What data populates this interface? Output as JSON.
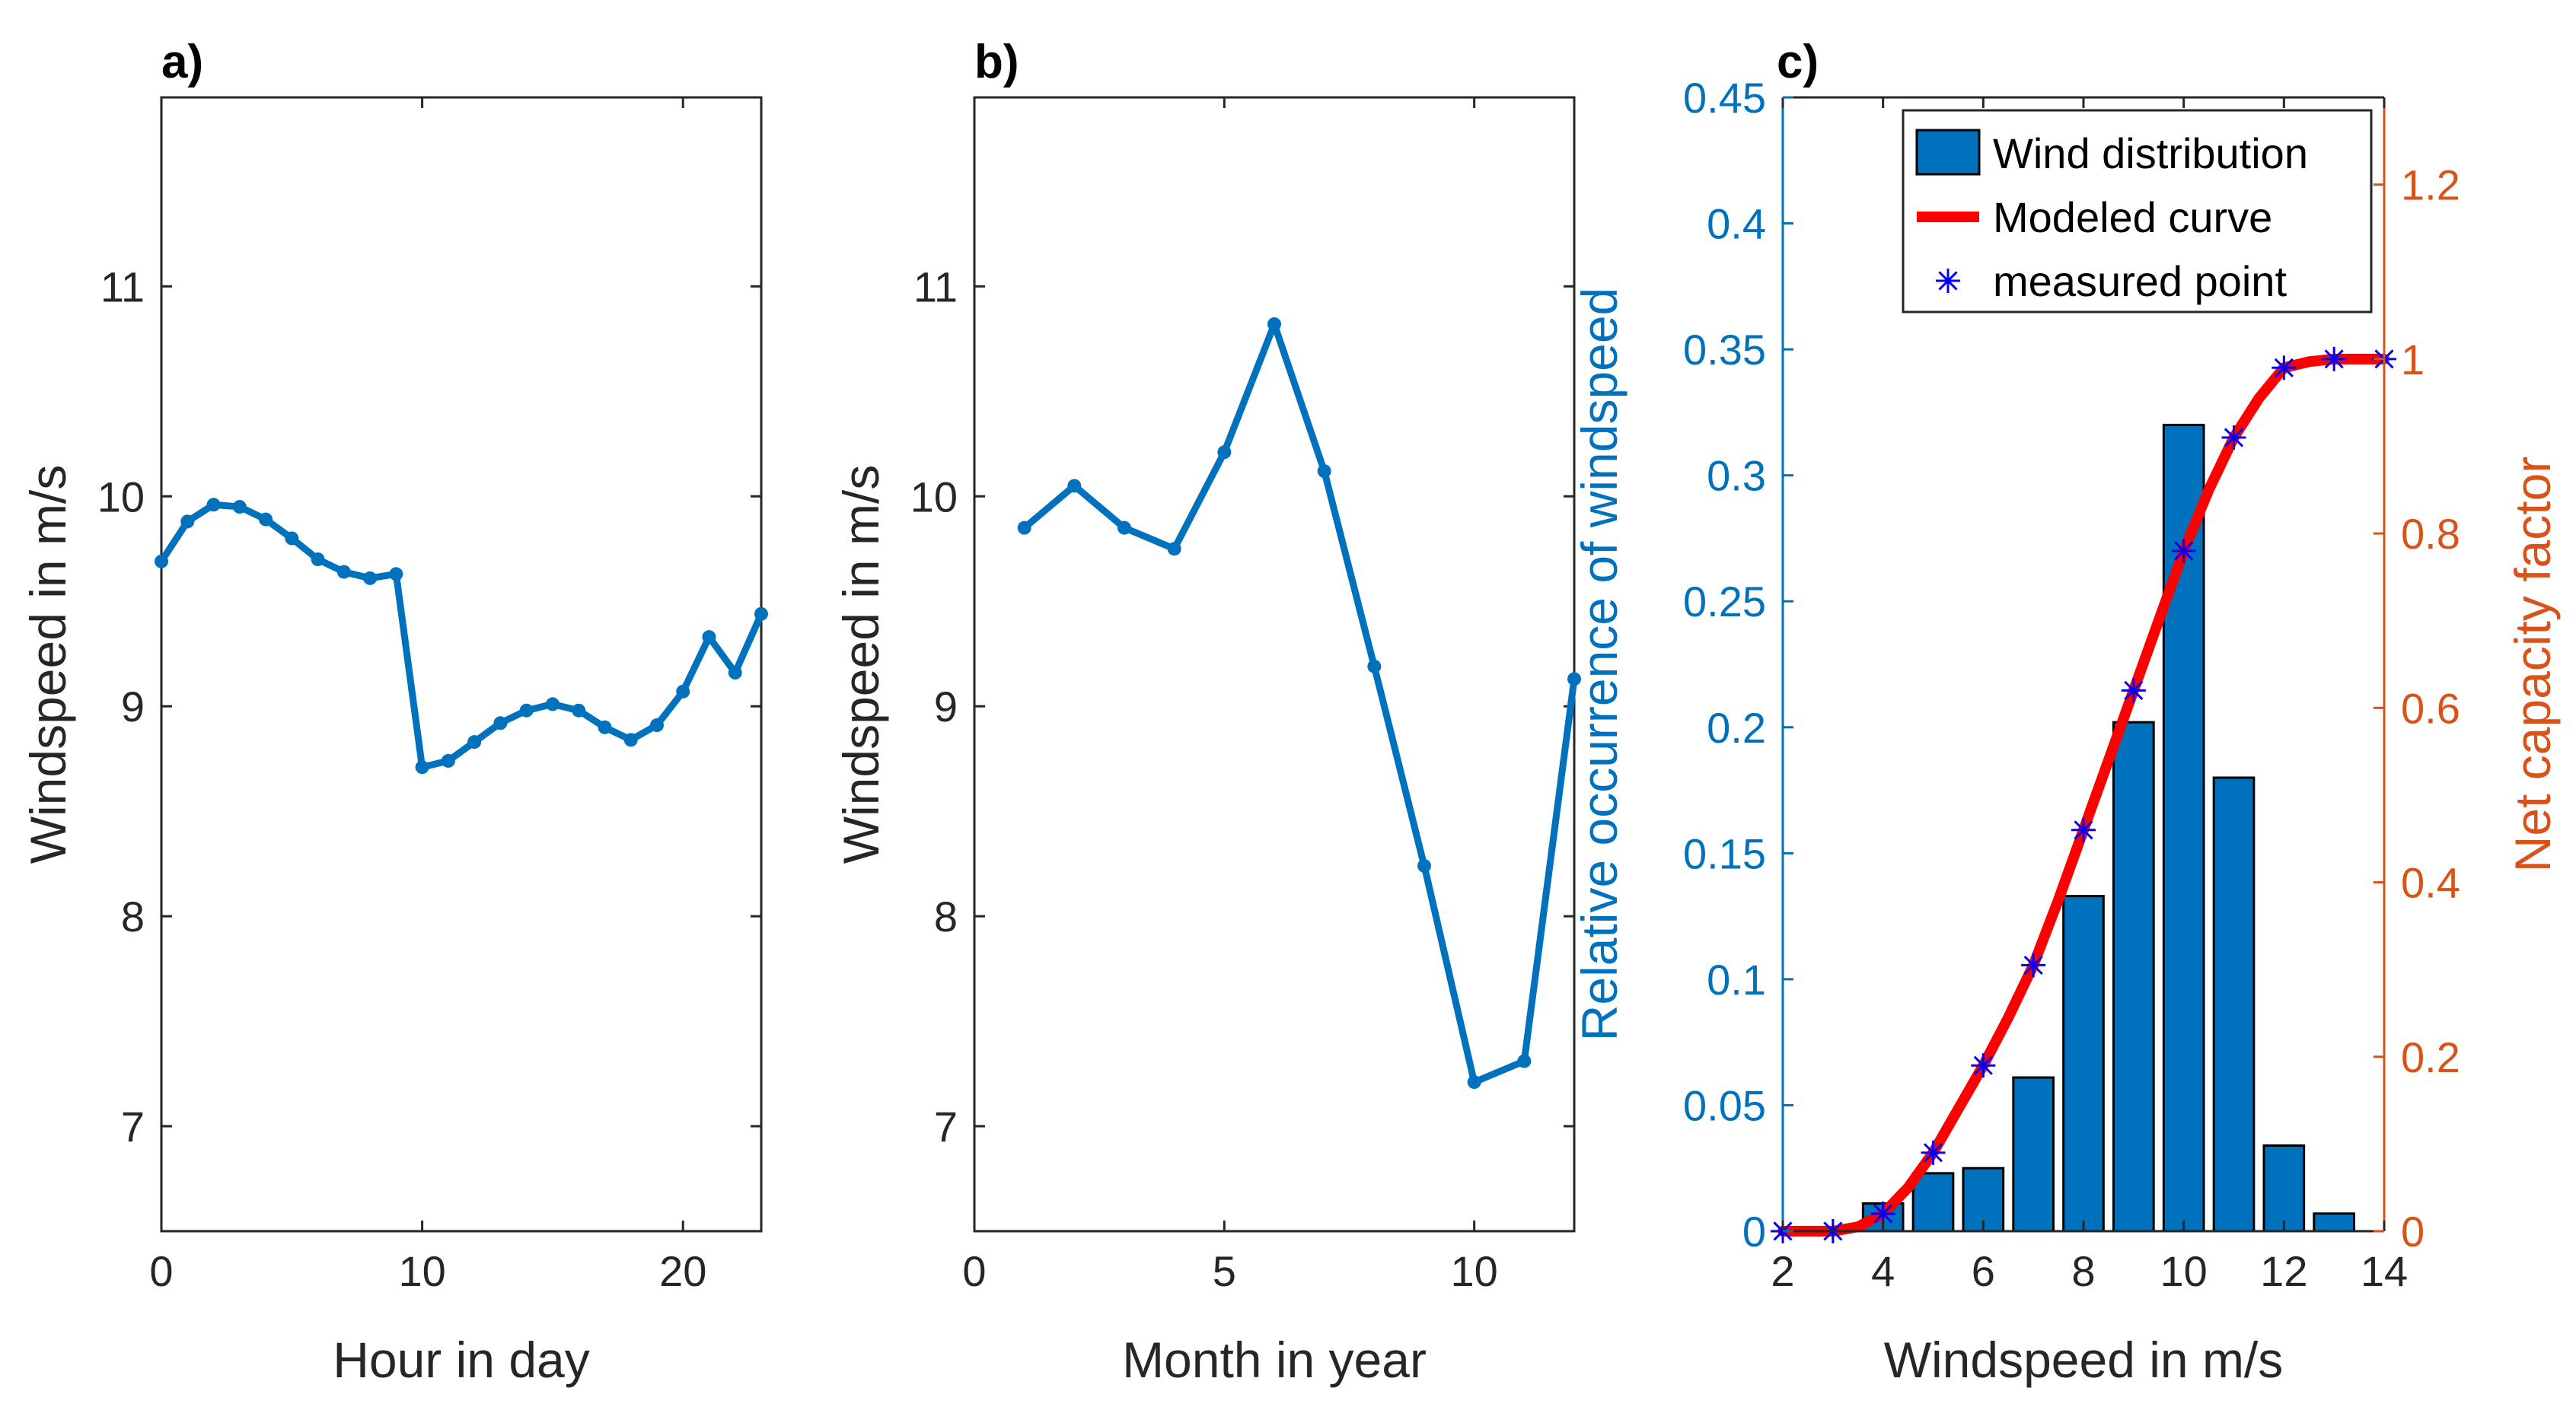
{
  "chart_data": [
    {
      "type": "line",
      "title": "a)",
      "xlabel": "Hour in day",
      "ylabel": "Windspeed in m/s",
      "xlim": [
        0,
        23
      ],
      "ylim": [
        6.5,
        11.9
      ],
      "xticks": [
        0,
        10,
        20
      ],
      "yticks": [
        7,
        8,
        9,
        10,
        11
      ],
      "color": "#0072BD",
      "x": [
        0,
        1,
        2,
        3,
        4,
        5,
        6,
        7,
        8,
        9,
        10,
        11,
        12,
        13,
        14,
        15,
        16,
        17,
        18,
        19,
        20,
        21,
        22,
        23
      ],
      "y": [
        9.69,
        9.88,
        9.96,
        9.95,
        9.89,
        9.8,
        9.7,
        9.64,
        9.61,
        9.63,
        8.71,
        8.74,
        8.83,
        8.92,
        8.98,
        9.01,
        8.98,
        8.9,
        8.84,
        8.91,
        9.07,
        9.33,
        9.16,
        9.44
      ]
    },
    {
      "type": "line",
      "title": "b)",
      "xlabel": "Month in year",
      "ylabel": "Windspeed in m/s",
      "xlim": [
        0,
        12
      ],
      "ylim": [
        6.5,
        11.9
      ],
      "xticks": [
        0,
        5,
        10
      ],
      "yticks": [
        7,
        8,
        9,
        10,
        11
      ],
      "color": "#0072BD",
      "x": [
        1,
        2,
        3,
        4,
        5,
        6,
        7,
        8,
        9,
        10,
        11,
        12
      ],
      "y": [
        9.85,
        10.05,
        9.85,
        9.75,
        10.21,
        10.82,
        10.12,
        9.19,
        8.24,
        7.21,
        7.31,
        9.13
      ]
    },
    {
      "type": "bar",
      "title": "c)",
      "xlabel": "Windspeed in m/s",
      "ylabel": "Relative occurrence of windspeed",
      "ylabel_right": "Net capacity factor",
      "xlim": [
        2,
        14
      ],
      "ylim": [
        0,
        0.45
      ],
      "ylim_right": [
        0,
        1.3
      ],
      "xticks": [
        2,
        4,
        6,
        8,
        10,
        12,
        14
      ],
      "yticks": [
        0,
        0.05,
        0.1,
        0.15,
        0.2,
        0.25,
        0.3,
        0.35,
        0.4,
        0.45
      ],
      "yticks_right": [
        0,
        0.2,
        0.4,
        0.6,
        0.8,
        1,
        1.2
      ],
      "xtick_labels": [
        "2",
        "4",
        "6",
        "8",
        "10",
        "12",
        "14"
      ],
      "ytick_labels": [
        "0",
        "0.05",
        "0.1",
        "0.15",
        "0.2",
        "0.25",
        "0.3",
        "0.35",
        "0.4",
        "0.45"
      ],
      "ytick_labels_right": [
        "0",
        "0.2",
        "0.4",
        "0.6",
        "0.8",
        "1",
        "1.2"
      ],
      "left_color": "#0072BD",
      "right_color": "#D95319",
      "bars": {
        "name": "Wind distribution",
        "color": "#0072BD",
        "x": [
          2,
          3,
          4,
          5,
          6,
          7,
          8,
          9,
          10,
          11,
          12,
          13
        ],
        "values": [
          0.0,
          0.0,
          0.011,
          0.023,
          0.025,
          0.061,
          0.133,
          0.202,
          0.32,
          0.18,
          0.034,
          0.007
        ]
      },
      "curve": {
        "name": "Modeled curve",
        "color": "#FF0000",
        "x": [
          2,
          2.5,
          3,
          3.5,
          4,
          4.5,
          5,
          5.5,
          6,
          6.5,
          7,
          7.5,
          8,
          8.5,
          9,
          9.5,
          10,
          10.5,
          11,
          11.5,
          12,
          12.5,
          13,
          13.5,
          14
        ],
        "y": [
          0,
          0,
          0,
          0.005,
          0.02,
          0.05,
          0.09,
          0.14,
          0.19,
          0.245,
          0.305,
          0.38,
          0.46,
          0.54,
          0.62,
          0.7,
          0.78,
          0.85,
          0.91,
          0.955,
          0.99,
          0.997,
          1.0,
          1.0,
          1.0
        ]
      },
      "points": {
        "name": "measured point",
        "color": "#0000FF",
        "x": [
          2,
          3,
          4,
          5,
          6,
          7,
          8,
          9,
          10,
          11,
          12,
          13,
          14
        ],
        "y": [
          0,
          0,
          0.02,
          0.09,
          0.19,
          0.305,
          0.46,
          0.62,
          0.78,
          0.91,
          0.99,
          1.0,
          1.0
        ]
      },
      "legend": {
        "position": "top-right",
        "entries": [
          "Wind distribution",
          "Modeled curve",
          "measured point"
        ]
      }
    }
  ]
}
